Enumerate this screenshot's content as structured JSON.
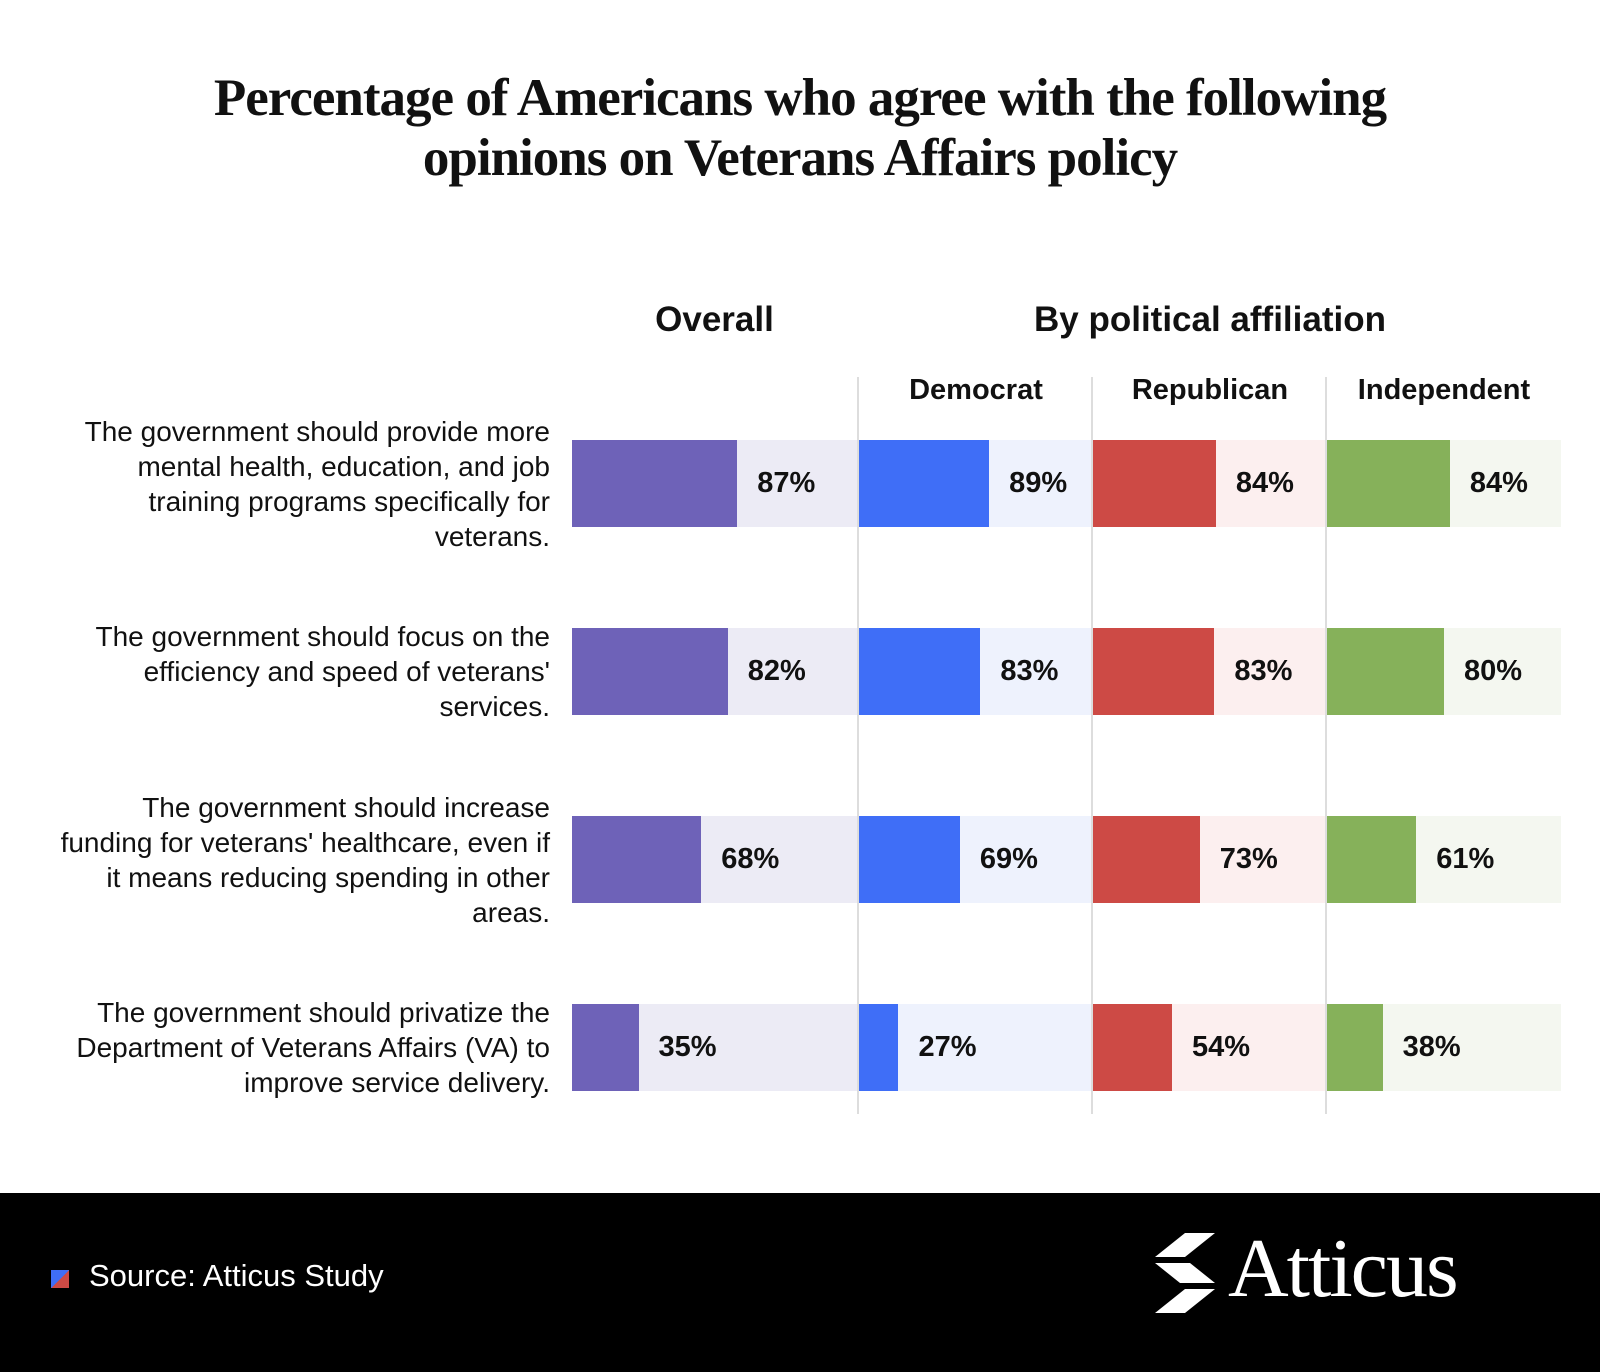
{
  "chart_data": {
    "type": "bar",
    "title": "Percentage of Americans who agree with the following opinions on Veterans Affairs policy",
    "group_title": "By political affiliation",
    "categories": [
      "The government should provide more mental health, education, and job training programs specifically for veterans.",
      "The government should focus on the efficiency and speed of veterans' services.",
      "The government should increase funding for veterans' healthcare, even if it means reducing spending in other areas.",
      "The government should privatize the Department of Veterans Affairs (VA) to improve service delivery."
    ],
    "series": [
      {
        "name": "Overall",
        "color": "#6e62b8",
        "track_color": "#ecebf5",
        "xlim": [
          0,
          150
        ],
        "values": [
          87,
          82,
          68,
          35
        ],
        "value_labels": [
          "87%",
          "82%",
          "68%",
          "35%"
        ]
      },
      {
        "name": "Democrat",
        "color": "#3f6ef7",
        "track_color": "#eef2fd",
        "xlim": [
          0,
          160
        ],
        "values": [
          89,
          83,
          69,
          27
        ],
        "value_labels": [
          "89%",
          "83%",
          "69%",
          "27%"
        ]
      },
      {
        "name": "Republican",
        "color": "#cd4a45",
        "track_color": "#fcefef",
        "xlim": [
          0,
          160
        ],
        "values": [
          84,
          83,
          73,
          54
        ],
        "value_labels": [
          "84%",
          "83%",
          "73%",
          "54%"
        ]
      },
      {
        "name": "Independent",
        "color": "#86b15a",
        "track_color": "#f4f7f0",
        "xlim": [
          0,
          160
        ],
        "values": [
          84,
          80,
          61,
          38
        ],
        "value_labels": [
          "84%",
          "80%",
          "61%",
          "38%"
        ]
      }
    ],
    "source": "Source: Atticus Study",
    "brand": "Atticus"
  }
}
